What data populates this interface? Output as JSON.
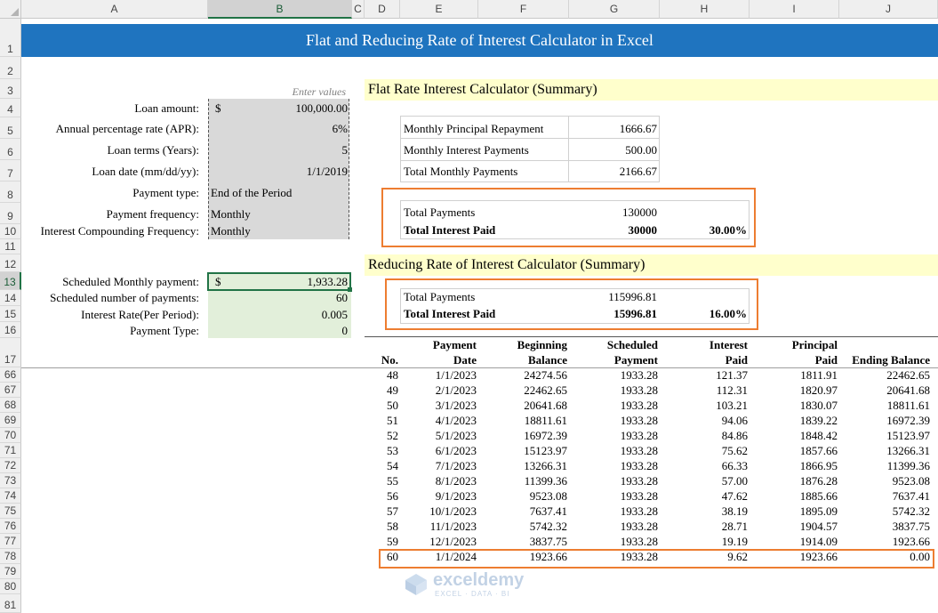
{
  "columns": [
    "A",
    "B",
    "C",
    "D",
    "E",
    "F",
    "G",
    "H",
    "I",
    "J"
  ],
  "rows": [
    "1",
    "2",
    "3",
    "4",
    "5",
    "6",
    "7",
    "8",
    "9",
    "10",
    "11",
    "12",
    "13",
    "14",
    "15",
    "16",
    "17",
    "66",
    "67",
    "68",
    "69",
    "70",
    "71",
    "72",
    "73",
    "74",
    "75",
    "76",
    "77",
    "78",
    "79",
    "80",
    "81"
  ],
  "title": "Flat and Reducing Rate of Interest Calculator in Excel",
  "enter_values_note": "Enter values",
  "inputs": [
    {
      "label": "Loan amount:",
      "currency": "$",
      "value": "100,000.00"
    },
    {
      "label": "Annual percentage rate (APR):",
      "currency": "",
      "value": "6%"
    },
    {
      "label": "Loan terms (Years):",
      "currency": "",
      "value": "5"
    },
    {
      "label": "Loan date (mm/dd/yy):",
      "currency": "",
      "value": "1/1/2019"
    },
    {
      "label": "Payment type:",
      "currency": "",
      "value": "End of the Period"
    },
    {
      "label": "Payment frequency:",
      "currency": "",
      "value": "Monthly"
    },
    {
      "label": "Interest Compounding Frequency:",
      "currency": "",
      "value": "Monthly"
    }
  ],
  "outputs": [
    {
      "label": "Scheduled Monthly payment:",
      "currency": "$",
      "value": "1,933.28"
    },
    {
      "label": "Scheduled number of payments:",
      "currency": "",
      "value": "60"
    },
    {
      "label": "Interest Rate(Per Period):",
      "currency": "",
      "value": "0.005"
    },
    {
      "label": "Payment Type:",
      "currency": "",
      "value": "0"
    }
  ],
  "flat_rate": {
    "heading": "Flat Rate Interest Calculator (Summary)",
    "rows": [
      {
        "label": "Monthly Principal Repayment",
        "value": "1666.67"
      },
      {
        "label": "Monthly Interest Payments",
        "value": "500.00"
      },
      {
        "label": "Total Monthly Payments",
        "value": "2166.67"
      }
    ],
    "total_payments_label": "Total Payments",
    "total_payments": "130000",
    "total_interest_label": "Total Interest Paid",
    "total_interest": "30000",
    "total_interest_pct": "30.00%"
  },
  "reducing_rate": {
    "heading": "Reducing Rate of Interest Calculator (Summary)",
    "total_payments_label": "Total Payments",
    "total_payments": "115996.81",
    "total_interest_label": "Total Interest Paid",
    "total_interest": "15996.81",
    "total_interest_pct": "16.00%"
  },
  "schedule": {
    "headers_top": [
      "",
      "Payment",
      "Beginning",
      "Scheduled",
      "Interest",
      "Principal",
      ""
    ],
    "headers_bottom": [
      "No.",
      "Date",
      "Balance",
      "Payment",
      "Paid",
      "Paid",
      "Ending Balance"
    ],
    "rows": [
      [
        "48",
        "1/1/2023",
        "24274.56",
        "1933.28",
        "121.37",
        "1811.91",
        "22462.65"
      ],
      [
        "49",
        "2/1/2023",
        "22462.65",
        "1933.28",
        "112.31",
        "1820.97",
        "20641.68"
      ],
      [
        "50",
        "3/1/2023",
        "20641.68",
        "1933.28",
        "103.21",
        "1830.07",
        "18811.61"
      ],
      [
        "51",
        "4/1/2023",
        "18811.61",
        "1933.28",
        "94.06",
        "1839.22",
        "16972.39"
      ],
      [
        "52",
        "5/1/2023",
        "16972.39",
        "1933.28",
        "84.86",
        "1848.42",
        "15123.97"
      ],
      [
        "53",
        "6/1/2023",
        "15123.97",
        "1933.28",
        "75.62",
        "1857.66",
        "13266.31"
      ],
      [
        "54",
        "7/1/2023",
        "13266.31",
        "1933.28",
        "66.33",
        "1866.95",
        "11399.36"
      ],
      [
        "55",
        "8/1/2023",
        "11399.36",
        "1933.28",
        "57.00",
        "1876.28",
        "9523.08"
      ],
      [
        "56",
        "9/1/2023",
        "9523.08",
        "1933.28",
        "47.62",
        "1885.66",
        "7637.41"
      ],
      [
        "57",
        "10/1/2023",
        "7637.41",
        "1933.28",
        "38.19",
        "1895.09",
        "5742.32"
      ],
      [
        "58",
        "11/1/2023",
        "5742.32",
        "1933.28",
        "28.71",
        "1904.57",
        "3837.75"
      ],
      [
        "59",
        "12/1/2023",
        "3837.75",
        "1933.28",
        "19.19",
        "1914.09",
        "1923.66"
      ],
      [
        "60",
        "1/1/2024",
        "1923.66",
        "1933.28",
        "9.62",
        "1923.66",
        "0.00"
      ]
    ]
  },
  "watermark": {
    "name": "exceldemy",
    "tagline": "EXCEL · DATA · BI"
  },
  "colors": {
    "banner": "#1f74bf",
    "highlight": "#ed7d31",
    "input_fill": "#d9d9d9",
    "output_fill": "#e2efda",
    "heading_fill": "#ffffcc"
  }
}
